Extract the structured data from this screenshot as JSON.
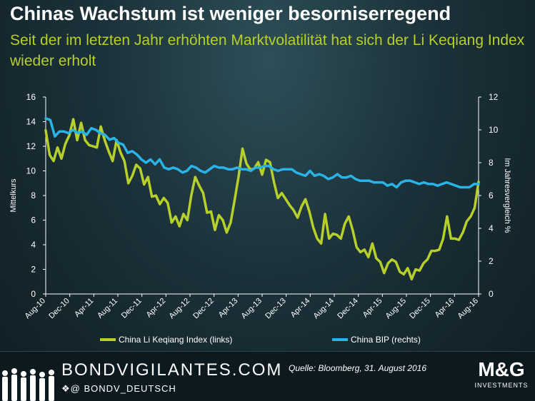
{
  "title": "Chinas Wachstum ist weniger besorniserregend",
  "subtitle": "Seit der im letzten Jahr erhöhten Marktvolatilität hat sich der Li Keqiang Index wieder erholt",
  "footer": {
    "brand": "BONDVIGILANTES.COM",
    "handle": "BONDV_DEUTSCH",
    "source": "Quelle: Bloomberg, 31. August 2016",
    "logo_main": "M&G",
    "logo_sub": "INVESTMENTS"
  },
  "colors": {
    "green": "#b7cf2a",
    "blue": "#29b3e6",
    "axis": "#ffffff",
    "background": "#1b3139"
  },
  "icons": [
    "twitter-bird-icon",
    "at-icon",
    "silhouette-crowd-icon"
  ],
  "chart_data": {
    "type": "line",
    "ylabel": "Mittelkurs",
    "y2label": "Im Jahresvergleich %",
    "ylim": [
      0,
      16
    ],
    "y2lim": [
      0,
      12
    ],
    "yticks": [
      "0",
      "2",
      "4",
      "6",
      "8",
      "10",
      "12",
      "14",
      "16"
    ],
    "y2ticks": [
      "0",
      "2",
      "4",
      "6",
      "8",
      "10",
      "12"
    ],
    "xticks": [
      "Aug-10",
      "Dec-10",
      "Apr-11",
      "Aug-11",
      "Dec-11",
      "Apr-12",
      "Aug-12",
      "Dec-12",
      "Apr-13",
      "Aug-13",
      "Dec-13",
      "Apr-14",
      "Aug-14",
      "Dec-14",
      "Apr-15",
      "Aug-15",
      "Dec-15",
      "Apr-16",
      "Aug-16"
    ],
    "x_range": [
      "Aug-10",
      "Aug-16"
    ],
    "legend_position": "bottom",
    "series": [
      {
        "name": "China Li Keqiang Index (links)",
        "axis": "left",
        "color": "#b7cf2a",
        "values": [
          13.3,
          11.3,
          10.8,
          11.9,
          11.0,
          12.2,
          12.9,
          14.2,
          12.5,
          13.9,
          12.5,
          12.1,
          12.0,
          11.9,
          13.6,
          12.5,
          11.6,
          10.8,
          12.5,
          11.5,
          10.8,
          9.0,
          9.6,
          10.5,
          10.2,
          8.9,
          9.5,
          7.9,
          8.0,
          7.3,
          7.8,
          7.4,
          5.8,
          6.3,
          5.5,
          6.5,
          6.0,
          8.0,
          9.5,
          8.8,
          8.2,
          6.6,
          6.7,
          5.2,
          6.4,
          6.0,
          5.0,
          5.8,
          7.6,
          9.5,
          11.8,
          10.6,
          10.1,
          10.2,
          10.7,
          9.7,
          10.9,
          10.7,
          9.1,
          7.8,
          8.2,
          7.7,
          7.2,
          6.8,
          6.2,
          7.1,
          7.7,
          6.7,
          5.4,
          4.5,
          4.1,
          6.5,
          4.5,
          4.9,
          4.8,
          4.5,
          5.7,
          6.3,
          5.2,
          3.8,
          3.4,
          3.6,
          3.0,
          4.1,
          2.9,
          2.6,
          1.7,
          2.5,
          2.8,
          2.6,
          1.8,
          1.6,
          2.1,
          1.2,
          2.0,
          1.9,
          2.5,
          2.8,
          3.5,
          3.5,
          3.6,
          4.5,
          6.3,
          4.5,
          4.5,
          4.4,
          5.0,
          5.9,
          6.3,
          7.0,
          9.1
        ]
      },
      {
        "name": "China BIP (rechts)",
        "axis": "right",
        "color": "#29b3e6",
        "values": [
          10.7,
          10.6,
          9.6,
          9.9,
          9.9,
          9.8,
          10.0,
          9.8,
          9.9,
          9.7,
          10.1,
          10.0,
          9.8,
          9.7,
          9.4,
          9.5,
          9.2,
          9.1,
          8.6,
          8.7,
          8.5,
          8.2,
          8.0,
          8.2,
          7.9,
          8.2,
          7.7,
          7.6,
          7.7,
          7.6,
          7.4,
          7.5,
          7.8,
          7.7,
          7.5,
          7.4,
          7.6,
          7.8,
          7.7,
          7.7,
          7.6,
          7.6,
          7.7,
          7.6,
          7.6,
          7.5,
          7.7,
          7.7,
          7.8,
          7.8,
          7.6,
          7.5,
          7.6,
          7.6,
          7.6,
          7.4,
          7.3,
          7.2,
          7.5,
          7.2,
          7.3,
          7.2,
          7.0,
          7.1,
          7.3,
          7.1,
          7.1,
          7.2,
          7.0,
          6.9,
          6.9,
          6.9,
          6.8,
          6.8,
          6.8,
          6.6,
          6.7,
          6.5,
          6.8,
          6.9,
          6.9,
          6.8,
          6.7,
          6.8,
          6.7,
          6.7,
          6.6,
          6.7,
          6.8,
          6.7,
          6.6,
          6.5,
          6.5,
          6.5,
          6.7,
          6.7
        ]
      }
    ]
  }
}
